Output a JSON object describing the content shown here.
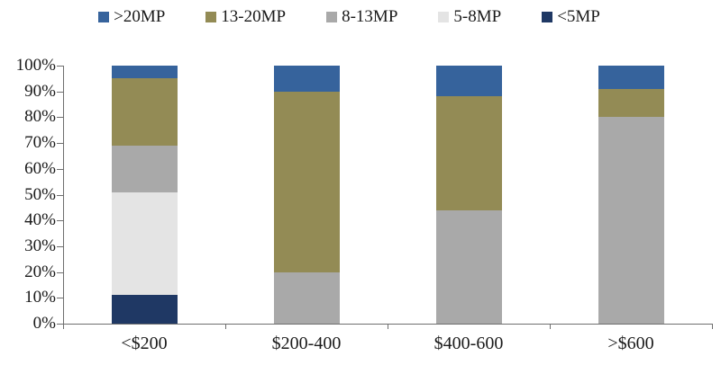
{
  "chart_data": {
    "type": "bar",
    "stacked": true,
    "percent_stacked": true,
    "title": "",
    "xlabel": "",
    "ylabel": "",
    "categories": [
      "<$200",
      "$200-400",
      "$400-600",
      ">$600"
    ],
    "series": [
      {
        "name": ">20MP",
        "color": "#36639C",
        "values": [
          5,
          10,
          12,
          9
        ]
      },
      {
        "name": "13-20MP",
        "color": "#938B55",
        "values": [
          26,
          70,
          44,
          11
        ]
      },
      {
        "name": "8-13MP",
        "color": "#A9A9A9",
        "values": [
          18,
          20,
          44,
          80
        ]
      },
      {
        "name": "5-8MP",
        "color": "#E4E4E4",
        "values": [
          40,
          0,
          0,
          0
        ]
      },
      {
        "name": "<5MP",
        "color": "#1F3864",
        "values": [
          11,
          0,
          0,
          0
        ]
      }
    ],
    "stack_order_bottom_to_top": [
      "<5MP",
      "5-8MP",
      "8-13MP",
      "13-20MP",
      ">20MP"
    ],
    "y_axis": {
      "min": 0,
      "max": 100,
      "step": 10,
      "format": "percent",
      "tick_labels": [
        "0%",
        "10%",
        "20%",
        "30%",
        "40%",
        "50%",
        "60%",
        "70%",
        "80%",
        "90%",
        "100%"
      ]
    },
    "legend_position": "top",
    "grid": false,
    "axis_color": "#6e6e6e",
    "text_color": "#1a1a1a"
  }
}
